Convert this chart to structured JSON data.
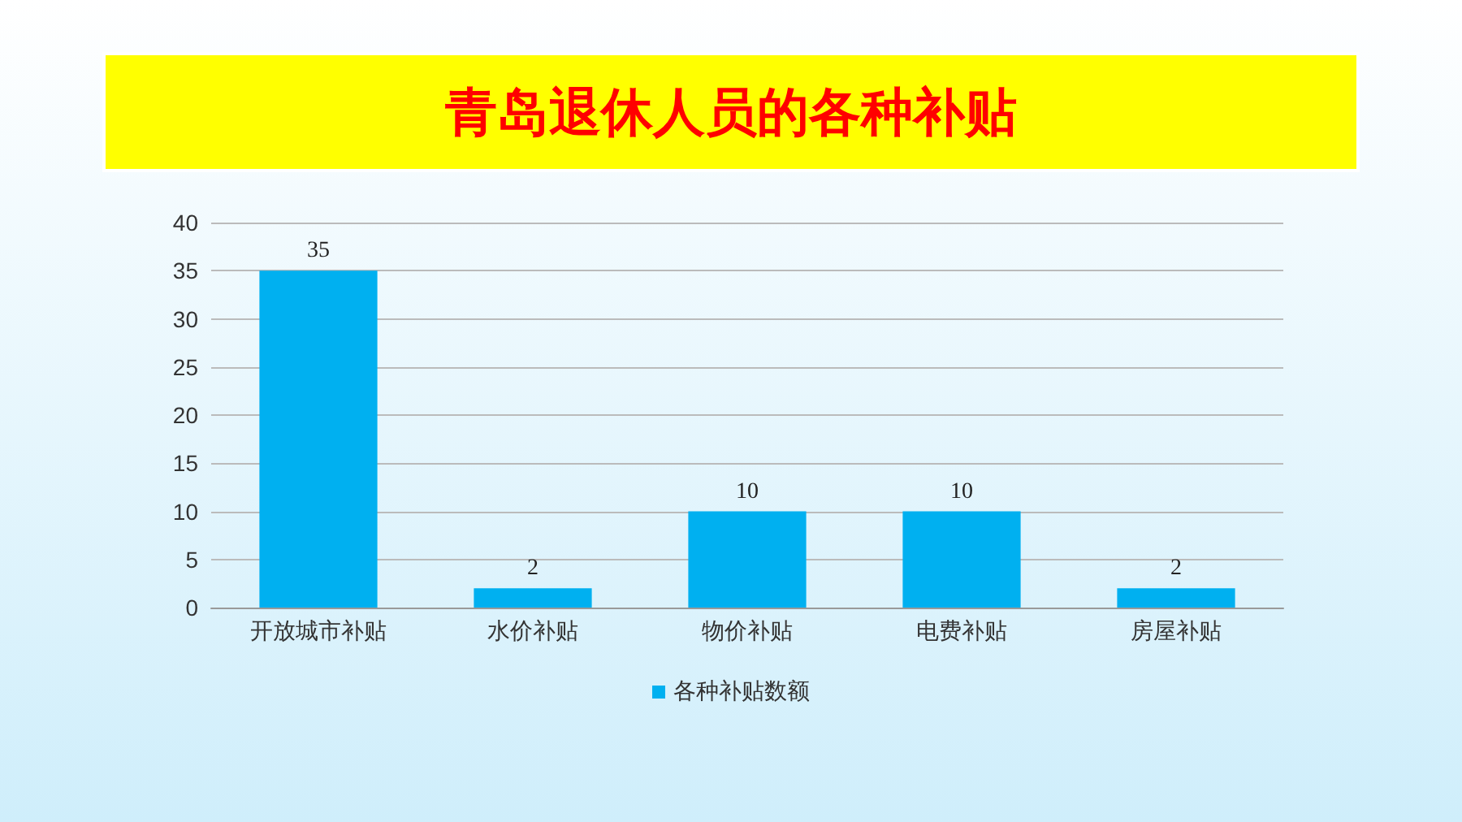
{
  "chart_data": {
    "type": "bar",
    "title": "青岛退休人员的各种补贴",
    "categories": [
      "开放城市补贴",
      "水价补贴",
      "物价补贴",
      "电费补贴",
      "房屋补贴"
    ],
    "series": [
      {
        "name": "各种补贴数额",
        "color": "#00b0f0",
        "values": [
          35,
          2,
          10,
          10,
          2
        ]
      }
    ],
    "ylim": [
      0,
      40
    ],
    "yticks": [
      0,
      5,
      10,
      15,
      20,
      25,
      30,
      35,
      40
    ],
    "grid": "y",
    "legend": "bottom",
    "data_labels": true
  }
}
